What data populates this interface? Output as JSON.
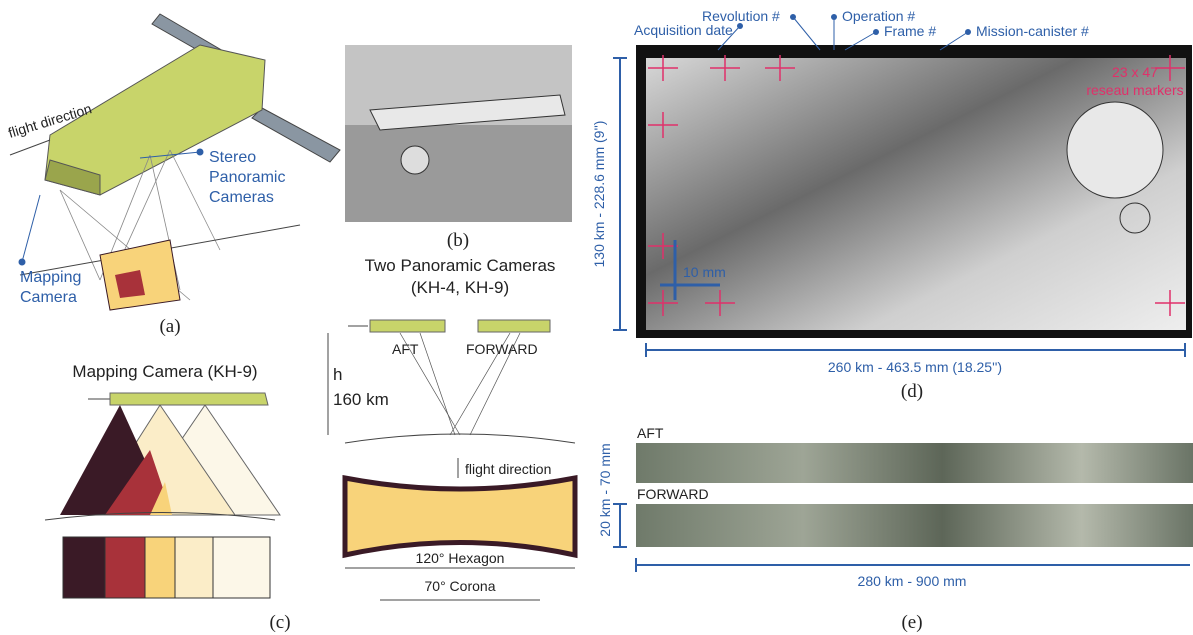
{
  "panel_a": {
    "flight_direction": "flight direction",
    "stereo_lines": [
      "Stereo",
      "Panoramic",
      "Cameras"
    ],
    "mapping_lines": [
      "Mapping",
      "Camera"
    ],
    "label": "(a)"
  },
  "panel_b": {
    "label": "(b)"
  },
  "panel_c": {
    "mapping_title": "Mapping Camera (KH-9)",
    "pan_title_lines": [
      "Two Panoramic Cameras",
      "(KH-4, KH-9)"
    ],
    "aft": "AFT",
    "forward": "FORWARD",
    "h": "h",
    "height": "160 km",
    "flight_direction": "flight direction",
    "hexagon": "120° Hexagon",
    "corona": "70° Corona",
    "label": "(c)"
  },
  "panel_d": {
    "acquisition_date": "Acquisition date",
    "revolution": "Revolution #",
    "operation": "Operation #",
    "frame": "Frame #",
    "mission_canister": "Mission-canister #",
    "reseau_lines": [
      "23 x 47",
      "reseau markers"
    ],
    "scale": "10 mm",
    "height": "130 km - 228.6 mm (9'')",
    "width": "260 km - 463.5 mm (18.25'')",
    "label": "(d)"
  },
  "panel_e": {
    "aft": "AFT",
    "forward": "FORWARD",
    "height": "20 km - 70 mm",
    "width": "280 km - 900 mm",
    "label": "(e)"
  }
}
